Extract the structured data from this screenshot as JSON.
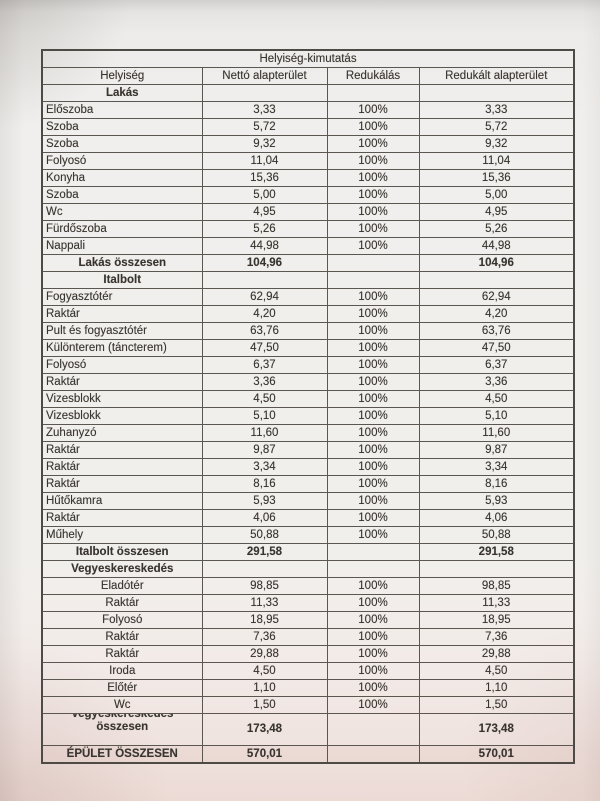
{
  "document": {
    "title": "Helyiség-kimutatás",
    "columns": [
      "Helyiség",
      "Nettó alapterület",
      "Redukálás",
      "Redukált alapterület"
    ],
    "sections": [
      {
        "name": "Lakás",
        "label_align": "left",
        "rows": [
          [
            "Előszoba",
            "3,33",
            "100%",
            "3,33"
          ],
          [
            "Szoba",
            "5,72",
            "100%",
            "5,72"
          ],
          [
            "Szoba",
            "9,32",
            "100%",
            "9,32"
          ],
          [
            "Folyosó",
            "11,04",
            "100%",
            "11,04"
          ],
          [
            "Konyha",
            "15,36",
            "100%",
            "15,36"
          ],
          [
            "Szoba",
            "5,00",
            "100%",
            "5,00"
          ],
          [
            "Wc",
            "4,95",
            "100%",
            "4,95"
          ],
          [
            "Fürdőszoba",
            "5,26",
            "100%",
            "5,26"
          ],
          [
            "Nappali",
            "44,98",
            "100%",
            "44,98"
          ]
        ],
        "total": {
          "label": "Lakás összesen",
          "net": "104,96",
          "reduced": "104,96"
        }
      },
      {
        "name": "Italbolt",
        "label_align": "left",
        "rows": [
          [
            "Fogyasztótér",
            "62,94",
            "100%",
            "62,94"
          ],
          [
            "Raktár",
            "4,20",
            "100%",
            "4,20"
          ],
          [
            "Pult és fogyasztótér",
            "63,76",
            "100%",
            "63,76"
          ],
          [
            "Különterem (táncterem)",
            "47,50",
            "100%",
            "47,50"
          ],
          [
            "Folyosó",
            "6,37",
            "100%",
            "6,37"
          ],
          [
            "Raktár",
            "3,36",
            "100%",
            "3,36"
          ],
          [
            "Vizesblokk",
            "4,50",
            "100%",
            "4,50"
          ],
          [
            "Vizesblokk",
            "5,10",
            "100%",
            "5,10"
          ],
          [
            "Zuhanyzó",
            "11,60",
            "100%",
            "11,60"
          ],
          [
            "Raktár",
            "9,87",
            "100%",
            "9,87"
          ],
          [
            "Raktár",
            "3,34",
            "100%",
            "3,34"
          ],
          [
            "Raktár",
            "8,16",
            "100%",
            "8,16"
          ],
          [
            "Hűtőkamra",
            "5,93",
            "100%",
            "5,93"
          ],
          [
            "Raktár",
            "4,06",
            "100%",
            "4,06"
          ],
          [
            "Műhely",
            "50,88",
            "100%",
            "50,88"
          ]
        ],
        "total": {
          "label": "Italbolt összesen",
          "net": "291,58",
          "reduced": "291,58"
        }
      },
      {
        "name": "Vegyeskereskedés",
        "label_align": "center",
        "rows": [
          [
            "Eladótér",
            "98,85",
            "100%",
            "98,85"
          ],
          [
            "Raktár",
            "11,33",
            "100%",
            "11,33"
          ],
          [
            "Folyosó",
            "18,95",
            "100%",
            "18,95"
          ],
          [
            "Raktár",
            "7,36",
            "100%",
            "7,36"
          ],
          [
            "Raktár",
            "29,88",
            "100%",
            "29,88"
          ],
          [
            "Iroda",
            "4,50",
            "100%",
            "4,50"
          ],
          [
            "Előtér",
            "1,10",
            "100%",
            "1,10"
          ],
          [
            "Wc",
            "1,50",
            "100%",
            "1,50"
          ]
        ],
        "total": {
          "label": "Vegyeskereskedés összesen",
          "label_lines": [
            "Vegyeskereskedés",
            "összesen"
          ],
          "net": "173,48",
          "reduced": "173,48",
          "tall": true
        }
      }
    ],
    "grand_total": {
      "label": "ÉPÜLET ÖSSZESEN",
      "net": "570,01",
      "reduced": "570,01"
    }
  },
  "colors": {
    "paper": "#f1efed",
    "paper_bottom_tint": "#ecdad5",
    "ink": "#38342f",
    "grid_line": "#5b5650",
    "outer_border": "#4e4a46"
  }
}
